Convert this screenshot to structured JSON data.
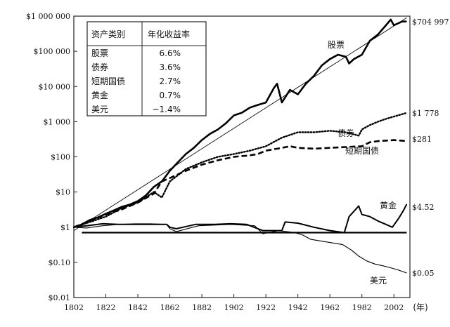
{
  "chart_data": {
    "type": "line",
    "yscale": "log",
    "ylim": [
      0.01,
      1000000
    ],
    "xlim": [
      1802,
      2012
    ],
    "x_ticks": [
      1802,
      1822,
      1842,
      1862,
      1882,
      1902,
      1922,
      1942,
      1962,
      1982,
      2002
    ],
    "x_tick_labels": [
      "1802",
      "1822",
      "1842",
      "1862",
      "1882",
      "1902",
      "1922",
      "1942",
      "1962",
      "1982",
      "2002"
    ],
    "x_unit": "(年)",
    "y_ticks": [
      1000000,
      100000,
      10000,
      1000,
      100,
      10,
      1,
      0.1,
      0.01
    ],
    "y_tick_labels": [
      "$1 000 000",
      "$100 000",
      "$10 000",
      "$1 000",
      "$100",
      "$10",
      "$1",
      "$0.10",
      "$0.01"
    ],
    "grid": false,
    "series": [
      {
        "name": "股票",
        "style": "thick-solid",
        "end_label": "$704 997",
        "points": [
          [
            1802,
            1
          ],
          [
            1807,
            1.2
          ],
          [
            1812,
            1.6
          ],
          [
            1817,
            1.9
          ],
          [
            1822,
            2.4
          ],
          [
            1827,
            3.0
          ],
          [
            1832,
            3.8
          ],
          [
            1837,
            4.4
          ],
          [
            1842,
            5.5
          ],
          [
            1847,
            8
          ],
          [
            1852,
            14
          ],
          [
            1857,
            20
          ],
          [
            1862,
            40
          ],
          [
            1867,
            70
          ],
          [
            1872,
            120
          ],
          [
            1877,
            180
          ],
          [
            1882,
            300
          ],
          [
            1887,
            450
          ],
          [
            1892,
            600
          ],
          [
            1897,
            900
          ],
          [
            1902,
            1500
          ],
          [
            1907,
            1800
          ],
          [
            1912,
            2500
          ],
          [
            1917,
            3000
          ],
          [
            1922,
            3500
          ],
          [
            1927,
            9000
          ],
          [
            1929,
            12000
          ],
          [
            1932,
            3500
          ],
          [
            1937,
            8000
          ],
          [
            1942,
            6000
          ],
          [
            1947,
            12000
          ],
          [
            1952,
            20000
          ],
          [
            1957,
            40000
          ],
          [
            1962,
            60000
          ],
          [
            1967,
            80000
          ],
          [
            1972,
            70000
          ],
          [
            1974,
            45000
          ],
          [
            1977,
            60000
          ],
          [
            1982,
            80000
          ],
          [
            1987,
            200000
          ],
          [
            1992,
            300000
          ],
          [
            1997,
            550000
          ],
          [
            2000,
            800000
          ],
          [
            2002,
            550000
          ],
          [
            2007,
            700000
          ],
          [
            2010,
            704997
          ]
        ]
      },
      {
        "name": "",
        "style": "thin-trend",
        "points": [
          [
            1802,
            0.8
          ],
          [
            2010,
            900000
          ]
        ]
      },
      {
        "name": "债券",
        "style": "dotted",
        "label": "债券",
        "end_label": "$1 778",
        "points": [
          [
            1802,
            1
          ],
          [
            1812,
            1.4
          ],
          [
            1822,
            2
          ],
          [
            1832,
            3.5
          ],
          [
            1842,
            5
          ],
          [
            1852,
            10
          ],
          [
            1857,
            7
          ],
          [
            1862,
            20
          ],
          [
            1872,
            45
          ],
          [
            1882,
            70
          ],
          [
            1892,
            100
          ],
          [
            1902,
            120
          ],
          [
            1912,
            150
          ],
          [
            1922,
            200
          ],
          [
            1932,
            350
          ],
          [
            1942,
            500
          ],
          [
            1952,
            500
          ],
          [
            1962,
            550
          ],
          [
            1972,
            500
          ],
          [
            1980,
            400
          ],
          [
            1982,
            600
          ],
          [
            1987,
            800
          ],
          [
            1992,
            1000
          ],
          [
            1997,
            1200
          ],
          [
            2002,
            1400
          ],
          [
            2010,
            1778
          ]
        ]
      },
      {
        "name": "短期国债",
        "style": "dashed",
        "label": "短期国债",
        "end_label": "$281",
        "points": [
          [
            1802,
            1
          ],
          [
            1812,
            1.5
          ],
          [
            1822,
            2.3
          ],
          [
            1832,
            3.2
          ],
          [
            1842,
            5
          ],
          [
            1852,
            9
          ],
          [
            1857,
            20
          ],
          [
            1862,
            25
          ],
          [
            1872,
            40
          ],
          [
            1882,
            60
          ],
          [
            1892,
            80
          ],
          [
            1902,
            100
          ],
          [
            1912,
            110
          ],
          [
            1917,
            120
          ],
          [
            1922,
            150
          ],
          [
            1932,
            180
          ],
          [
            1937,
            200
          ],
          [
            1942,
            180
          ],
          [
            1952,
            170
          ],
          [
            1962,
            180
          ],
          [
            1972,
            190
          ],
          [
            1982,
            200
          ],
          [
            1987,
            260
          ],
          [
            1992,
            280
          ],
          [
            2002,
            300
          ],
          [
            2010,
            281
          ]
        ]
      },
      {
        "name": "黄金",
        "style": "solid",
        "label": "黄金",
        "end_label": "$4.52",
        "points": [
          [
            1802,
            1
          ],
          [
            1810,
            1.1
          ],
          [
            1820,
            1.25
          ],
          [
            1830,
            1.2
          ],
          [
            1840,
            1.2
          ],
          [
            1850,
            1.2
          ],
          [
            1860,
            1.2
          ],
          [
            1862,
            1.0
          ],
          [
            1866,
            0.9
          ],
          [
            1878,
            1.2
          ],
          [
            1890,
            1.2
          ],
          [
            1900,
            1.25
          ],
          [
            1910,
            1.2
          ],
          [
            1920,
            0.8
          ],
          [
            1932,
            0.8
          ],
          [
            1934,
            1.4
          ],
          [
            1942,
            1.3
          ],
          [
            1952,
            1.0
          ],
          [
            1962,
            0.8
          ],
          [
            1971,
            0.7
          ],
          [
            1974,
            2.0
          ],
          [
            1980,
            4.0
          ],
          [
            1982,
            2.3
          ],
          [
            1987,
            2.0
          ],
          [
            1992,
            1.5
          ],
          [
            1997,
            1.2
          ],
          [
            2001,
            1.0
          ],
          [
            2005,
            1.8
          ],
          [
            2008,
            3.0
          ],
          [
            2010,
            4.52
          ]
        ]
      },
      {
        "name": "美元",
        "style": "thin-solid",
        "label": "美元",
        "end_label": "$0.05",
        "points": [
          [
            1802,
            1
          ],
          [
            1810,
            0.95
          ],
          [
            1820,
            1.1
          ],
          [
            1830,
            1.2
          ],
          [
            1840,
            1.25
          ],
          [
            1850,
            1.25
          ],
          [
            1860,
            1.2
          ],
          [
            1862,
            0.9
          ],
          [
            1866,
            0.75
          ],
          [
            1880,
            1.1
          ],
          [
            1900,
            1.2
          ],
          [
            1915,
            1.1
          ],
          [
            1920,
            0.65
          ],
          [
            1930,
            0.8
          ],
          [
            1940,
            0.7
          ],
          [
            1945,
            0.6
          ],
          [
            1950,
            0.45
          ],
          [
            1960,
            0.38
          ],
          [
            1970,
            0.32
          ],
          [
            1975,
            0.23
          ],
          [
            1980,
            0.15
          ],
          [
            1985,
            0.11
          ],
          [
            1990,
            0.09
          ],
          [
            1995,
            0.08
          ],
          [
            2000,
            0.07
          ],
          [
            2005,
            0.06
          ],
          [
            2010,
            0.05
          ]
        ]
      },
      {
        "name": "",
        "style": "baseline",
        "points": [
          [
            1807,
            0.7
          ],
          [
            2010,
            0.7
          ]
        ]
      }
    ],
    "table": {
      "headers": [
        "资产类别",
        "年化收益率"
      ],
      "rows": [
        [
          "股票",
          "6.6%"
        ],
        [
          "债券",
          "3.6%"
        ],
        [
          "短期国债",
          "2.7%"
        ],
        [
          "黄金",
          "0.7%"
        ],
        [
          "美元",
          "−1.4%"
        ]
      ]
    }
  }
}
